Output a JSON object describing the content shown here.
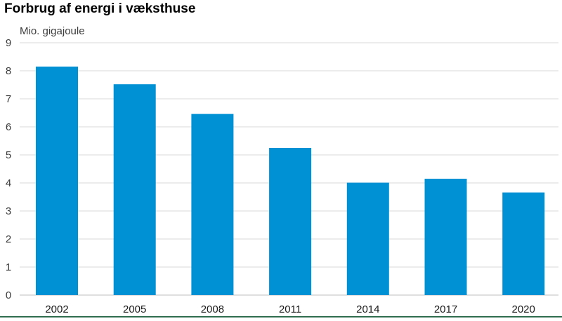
{
  "chart_data": {
    "type": "bar",
    "title": "Forbrug af energi i væksthuse",
    "unit_label": "Mio. gigajoule",
    "categories": [
      "2002",
      "2005",
      "2008",
      "2011",
      "2014",
      "2017",
      "2020"
    ],
    "values": [
      8.15,
      7.52,
      6.46,
      5.25,
      4.01,
      4.15,
      3.66
    ],
    "ylim": [
      0,
      9
    ],
    "yticks": [
      0,
      1,
      2,
      3,
      4,
      5,
      6,
      7,
      8,
      9
    ],
    "grid": true,
    "legend": "none",
    "colors": {
      "bar": "#0090d4",
      "grid": "#d9d9d9",
      "baseline": "#2f6d4e"
    }
  }
}
